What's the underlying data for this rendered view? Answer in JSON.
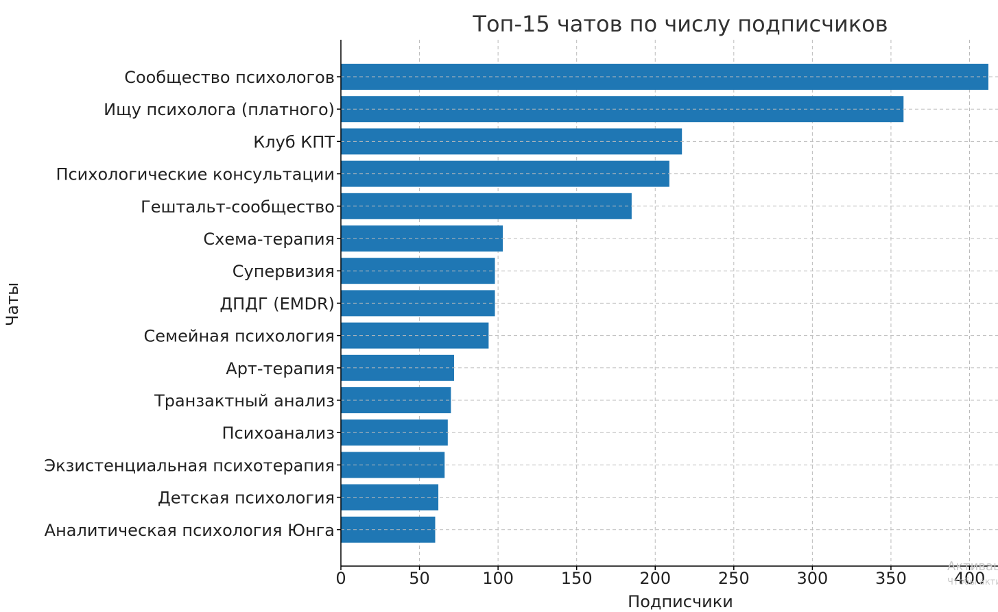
{
  "chart_data": {
    "type": "bar",
    "orientation": "horizontal",
    "title": "Топ-15 чатов по числу подписчиков",
    "xlabel": "Подписчики",
    "ylabel": "Чаты",
    "categories": [
      "Сообщество психологов",
      "Ищу психолога (платного)",
      "Клуб КПТ",
      "Психологические консультации",
      "Гештальт-сообщество",
      "Схема-терапия",
      "Супервизия",
      "ДПДГ (EMDR)",
      "Семейная психология",
      "Арт-терапия",
      "Транзактный анализ",
      "Психоанализ",
      "Экзистенциальная психотерапия",
      "Детская психология",
      "Аналитическая психология Юнга"
    ],
    "values": [
      412,
      358,
      217,
      209,
      185,
      103,
      98,
      98,
      94,
      72,
      70,
      68,
      66,
      62,
      60
    ],
    "xlim": [
      0,
      412
    ],
    "xticks": [
      "0",
      "50",
      "100",
      "150",
      "200",
      "250",
      "300",
      "350",
      "400"
    ],
    "grid": true,
    "bar_color": "#1f77b4"
  },
  "watermark": {
    "line1": "Активац",
    "line2": "Чтобы акти"
  }
}
